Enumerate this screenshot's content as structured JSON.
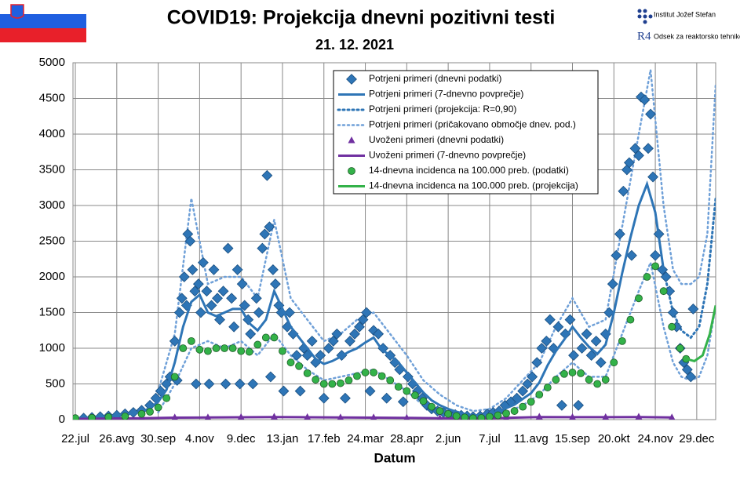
{
  "chart_data": {
    "type": "line",
    "title": "COVID19: Projekcija dnevni pozitivni testi",
    "subtitle": "21. 12. 2021",
    "x_label": "Datum",
    "annotations": [
      "Institut Jožef Stefan",
      "Odsek za reaktorsko tehniko",
      "R4"
    ],
    "xlim": [
      -2,
      541
    ],
    "ylim": [
      0,
      5000
    ],
    "xticks": [
      {
        "value": 0,
        "label": "22.jul"
      },
      {
        "value": 35,
        "label": "26.avg"
      },
      {
        "value": 70,
        "label": "30.sep"
      },
      {
        "value": 105,
        "label": "4.nov"
      },
      {
        "value": 140,
        "label": "9.dec"
      },
      {
        "value": 175,
        "label": "13.jan"
      },
      {
        "value": 210,
        "label": "17.feb"
      },
      {
        "value": 245,
        "label": "24.mar"
      },
      {
        "value": 280,
        "label": "28.apr"
      },
      {
        "value": 315,
        "label": "2.jun"
      },
      {
        "value": 350,
        "label": "7.jul"
      },
      {
        "value": 385,
        "label": "11.avg"
      },
      {
        "value": 420,
        "label": "15.sep"
      },
      {
        "value": 455,
        "label": "20.okt"
      },
      {
        "value": 490,
        "label": "24.nov"
      },
      {
        "value": 525,
        "label": "29.dec"
      }
    ],
    "yticks": [
      0,
      500,
      1000,
      1500,
      2000,
      2500,
      3000,
      3500,
      4000,
      4500,
      5000
    ],
    "grid": true,
    "series": [
      {
        "name": "Potrjeni primeri (dnevni podatki)",
        "kind": "scatter",
        "marker": "diamond",
        "color": "#2e75b6",
        "x": [
          7,
          14,
          21,
          28,
          35,
          42,
          49,
          56,
          63,
          68,
          72,
          77,
          80,
          84,
          86,
          88,
          90,
          92,
          94,
          95,
          97,
          99,
          101,
          102,
          104,
          106,
          108,
          111,
          113,
          115,
          117,
          120,
          122,
          125,
          127,
          129,
          132,
          134,
          137,
          139,
          141,
          143,
          146,
          148,
          150,
          153,
          155,
          158,
          160,
          162,
          164,
          165,
          167,
          169,
          172,
          174,
          176,
          179,
          181,
          184,
          187,
          190,
          193,
          196,
          200,
          203,
          207,
          210,
          214,
          218,
          221,
          225,
          228,
          232,
          236,
          240,
          243,
          246,
          249,
          252,
          256,
          260,
          263,
          266,
          270,
          274,
          277,
          281,
          285,
          289,
          293,
          297,
          301,
          306,
          311,
          316,
          321,
          326,
          331,
          336,
          342,
          348,
          353,
          358,
          363,
          368,
          373,
          378,
          382,
          386,
          390,
          394,
          398,
          401,
          404,
          408,
          411,
          414,
          418,
          421,
          425,
          428,
          432,
          436,
          440,
          444,
          448,
          451,
          454,
          457,
          460,
          463,
          466,
          468,
          470,
          473,
          476,
          478,
          481,
          484,
          486,
          488,
          490,
          493,
          496,
          499,
          502,
          505,
          508,
          511,
          514,
          517,
          520,
          522
        ],
        "values": [
          20,
          30,
          40,
          50,
          60,
          80,
          100,
          130,
          200,
          300,
          400,
          500,
          600,
          1100,
          550,
          1500,
          1700,
          2000,
          1600,
          2600,
          2500,
          2100,
          1800,
          500,
          1900,
          1500,
          2200,
          1800,
          500,
          1600,
          2100,
          1700,
          1400,
          1800,
          500,
          2400,
          1700,
          1300,
          2100,
          500,
          1900,
          1600,
          1400,
          1200,
          500,
          1700,
          1500,
          2400,
          2600,
          3420,
          2700,
          600,
          2100,
          1900,
          1600,
          1500,
          400,
          1300,
          1500,
          1200,
          900,
          400,
          1000,
          900,
          1100,
          800,
          900,
          300,
          1000,
          1100,
          1200,
          900,
          300,
          1100,
          1200,
          1300,
          1400,
          1500,
          400,
          1250,
          1200,
          1000,
          300,
          900,
          800,
          700,
          250,
          600,
          500,
          400,
          300,
          200,
          150,
          120,
          100,
          80,
          70,
          60,
          50,
          40,
          50,
          80,
          100,
          120,
          200,
          250,
          300,
          400,
          500,
          600,
          800,
          1000,
          1100,
          1400,
          1000,
          1300,
          200,
          1200,
          1400,
          900,
          200,
          1000,
          1200,
          900,
          1100,
          800,
          1200,
          1500,
          1900,
          2300,
          2600,
          3200,
          3500,
          3600,
          2300,
          3800,
          3700,
          4520,
          4480,
          3800,
          4280,
          3400,
          2300,
          2600,
          2100,
          2000,
          1800,
          1500,
          1300,
          1000,
          800,
          700,
          600,
          1550
        ]
      },
      {
        "name": "Potrjeni primeri (7-dnevno povprečje)",
        "kind": "line",
        "style": "solid",
        "color": "#2e75b6",
        "x": [
          0,
          14,
          28,
          42,
          56,
          63,
          70,
          77,
          84,
          91,
          98,
          105,
          112,
          119,
          126,
          133,
          140,
          147,
          154,
          161,
          168,
          175,
          182,
          189,
          196,
          203,
          210,
          217,
          224,
          231,
          238,
          245,
          252,
          259,
          266,
          273,
          280,
          287,
          294,
          301,
          308,
          315,
          322,
          329,
          336,
          343,
          350,
          357,
          364,
          371,
          378,
          385,
          392,
          399,
          406,
          413,
          420,
          427,
          434,
          441,
          448,
          455,
          462,
          469,
          476,
          483,
          490,
          497
        ],
        "values": [
          20,
          30,
          45,
          70,
          110,
          160,
          250,
          420,
          800,
          1300,
          1650,
          1750,
          1500,
          1450,
          1500,
          1550,
          1550,
          1350,
          1250,
          1400,
          1800,
          1550,
          1300,
          1150,
          1000,
          850,
          780,
          820,
          880,
          950,
          1000,
          1080,
          1150,
          980,
          900,
          800,
          660,
          520,
          380,
          270,
          200,
          150,
          110,
          80,
          60,
          55,
          80,
          110,
          160,
          210,
          290,
          370,
          520,
          760,
          960,
          1120,
          1300,
          1150,
          1020,
          920,
          1050,
          1500,
          2050,
          2550,
          3000,
          3300,
          2900,
          2100
        ]
      },
      {
        "name": "Potrjeni primeri (projekcija: R=0,90)",
        "kind": "line",
        "style": "dotted",
        "color": "#2e75b6",
        "x": [
          497,
          505,
          512,
          520,
          527,
          534,
          541
        ],
        "values": [
          2100,
          1500,
          1250,
          1150,
          1300,
          1900,
          3100
        ]
      },
      {
        "name": "Potrjeni primeri (pričakovano območje dnev. pod.)",
        "kind": "band",
        "style": "dotted",
        "color": "#6fa0d8",
        "x": [
          70,
          84,
          98,
          112,
          126,
          140,
          154,
          168,
          182,
          196,
          210,
          224,
          238,
          252,
          266,
          280,
          294,
          308,
          322,
          336,
          350,
          364,
          378,
          392,
          406,
          420,
          434,
          448,
          462,
          476,
          486,
          497,
          505,
          512,
          520,
          527,
          534,
          541
        ],
        "upper": [
          400,
          1200,
          3100,
          1900,
          2000,
          2000,
          1700,
          2800,
          1700,
          1400,
          1100,
          1200,
          1400,
          1500,
          1200,
          900,
          550,
          350,
          200,
          120,
          150,
          300,
          550,
          800,
          1300,
          1700,
          1300,
          1400,
          2700,
          4000,
          4900,
          3000,
          2100,
          1900,
          1900,
          2000,
          2600,
          4700
        ],
        "lower": [
          100,
          500,
          1000,
          1100,
          1000,
          1100,
          900,
          1200,
          900,
          700,
          550,
          600,
          650,
          700,
          550,
          400,
          200,
          120,
          60,
          30,
          40,
          100,
          200,
          350,
          600,
          800,
          600,
          600,
          1200,
          1800,
          2200,
          1300,
          800,
          600,
          550,
          600,
          900,
          1600
        ]
      },
      {
        "name": "Uvoženi primeri (dnevni podatki)",
        "kind": "scatter",
        "marker": "triangle",
        "color": "#7030a0",
        "x": [
          0,
          28,
          56,
          84,
          112,
          140,
          168,
          196,
          224,
          252,
          280,
          308,
          336,
          364,
          392,
          420,
          448,
          476,
          504
        ],
        "values": [
          10,
          15,
          25,
          30,
          30,
          35,
          40,
          35,
          30,
          30,
          25,
          20,
          15,
          25,
          40,
          35,
          35,
          40,
          30
        ]
      },
      {
        "name": "Uvoženi primeri (7-dnevno povprečje)",
        "kind": "line",
        "style": "solid",
        "color": "#7030a0",
        "x": [
          0,
          28,
          56,
          84,
          112,
          140,
          168,
          196,
          224,
          252,
          280,
          308,
          336,
          364,
          392,
          420,
          448,
          476,
          504
        ],
        "values": [
          10,
          15,
          20,
          28,
          30,
          33,
          36,
          33,
          30,
          28,
          24,
          20,
          17,
          24,
          35,
          34,
          34,
          36,
          30
        ]
      },
      {
        "name": "14-dnevna incidenca na 100.000 preb. (podatki)",
        "kind": "scatter",
        "marker": "circle",
        "color": "#33b249",
        "x": [
          0,
          14,
          28,
          42,
          56,
          63,
          70,
          77,
          84,
          91,
          98,
          105,
          112,
          119,
          126,
          133,
          140,
          147,
          154,
          161,
          168,
          175,
          182,
          189,
          196,
          203,
          210,
          217,
          224,
          231,
          238,
          245,
          252,
          259,
          266,
          273,
          280,
          287,
          294,
          301,
          308,
          315,
          322,
          329,
          336,
          343,
          350,
          357,
          364,
          371,
          378,
          385,
          392,
          399,
          406,
          413,
          420,
          427,
          434,
          441,
          448,
          455,
          462,
          469,
          476,
          483,
          490,
          497,
          504,
          511,
          516
        ],
        "values": [
          20,
          25,
          35,
          45,
          80,
          110,
          170,
          300,
          600,
          1000,
          1100,
          980,
          960,
          1000,
          1000,
          1000,
          960,
          950,
          1050,
          1150,
          1150,
          960,
          800,
          750,
          650,
          560,
          500,
          500,
          510,
          550,
          610,
          660,
          660,
          610,
          550,
          460,
          400,
          340,
          260,
          180,
          120,
          80,
          50,
          30,
          20,
          22,
          40,
          60,
          85,
          120,
          180,
          250,
          350,
          450,
          560,
          640,
          660,
          650,
          560,
          500,
          560,
          800,
          1100,
          1400,
          1700,
          2000,
          2150,
          1800,
          1300,
          1000,
          850
        ]
      },
      {
        "name": "14-dnevna incidenca na 100.000 preb. (projekcija)",
        "kind": "line",
        "style": "solid",
        "color": "#33b249",
        "x": [
          516,
          523,
          530,
          536,
          541
        ],
        "values": [
          850,
          820,
          900,
          1200,
          1600
        ]
      }
    ]
  }
}
